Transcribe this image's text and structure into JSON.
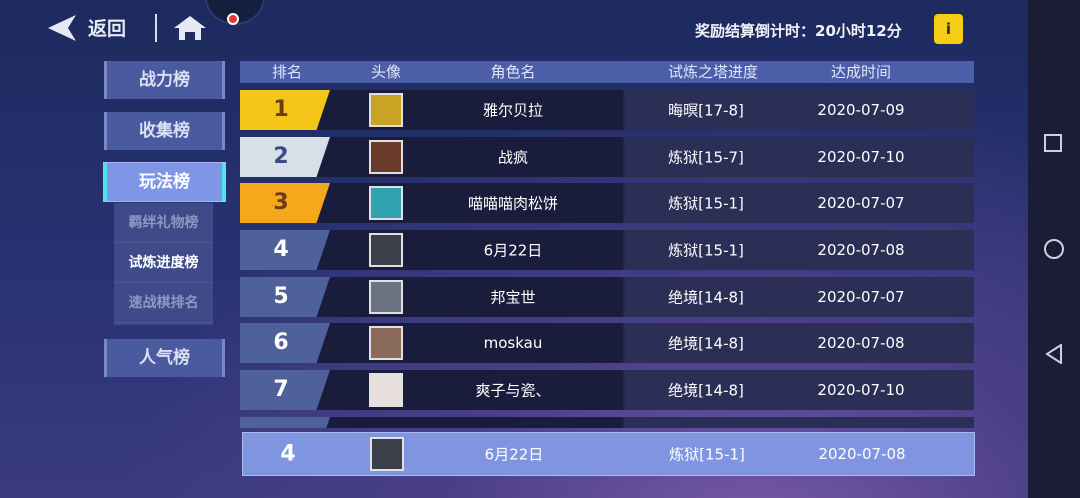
{
  "header": {
    "back_label": "返回",
    "timer_text": "奖励结算倒计时：20小时12分",
    "info_label": "i"
  },
  "sidebar": {
    "items": [
      {
        "label": "战力榜"
      },
      {
        "label": "收集榜"
      },
      {
        "label": "玩法榜",
        "active": true
      },
      {
        "label": "人气榜"
      }
    ],
    "sub_items": [
      {
        "label": "羁绊礼物榜"
      },
      {
        "label": "试炼进度榜",
        "active": true
      },
      {
        "label": "速战棋排名"
      }
    ]
  },
  "table": {
    "columns": [
      "排名",
      "头像",
      "角色名",
      "试炼之塔进度",
      "达成时间"
    ],
    "rows": [
      {
        "rank": "1",
        "name": "雅尔贝拉",
        "progress": "晦暝[17-8]",
        "date": "2020-07-09",
        "medal": "#f5c518",
        "text": "#6b3b1c"
      },
      {
        "rank": "2",
        "name": "战疯",
        "progress": "炼狱[15-7]",
        "date": "2020-07-10",
        "medal": "#d7dfe8",
        "text": "#3b4a8a"
      },
      {
        "rank": "3",
        "name": "喵喵喵肉松饼",
        "progress": "炼狱[15-1]",
        "date": "2020-07-07",
        "medal": "#f5a81c",
        "text": "#6b3b1c"
      },
      {
        "rank": "4",
        "name": "6月22日",
        "progress": "炼狱[15-1]",
        "date": "2020-07-08"
      },
      {
        "rank": "5",
        "name": "邦宝世",
        "progress": "绝境[14-8]",
        "date": "2020-07-07"
      },
      {
        "rank": "6",
        "name": "moskau",
        "progress": "绝境[14-8]",
        "date": "2020-07-08"
      },
      {
        "rank": "7",
        "name": "爽子与瓷、",
        "progress": "绝境[14-8]",
        "date": "2020-07-10"
      }
    ]
  },
  "my_rank": {
    "rank": "4",
    "name": "6月22日",
    "progress": "炼狱[15-1]",
    "date": "2020-07-08"
  }
}
